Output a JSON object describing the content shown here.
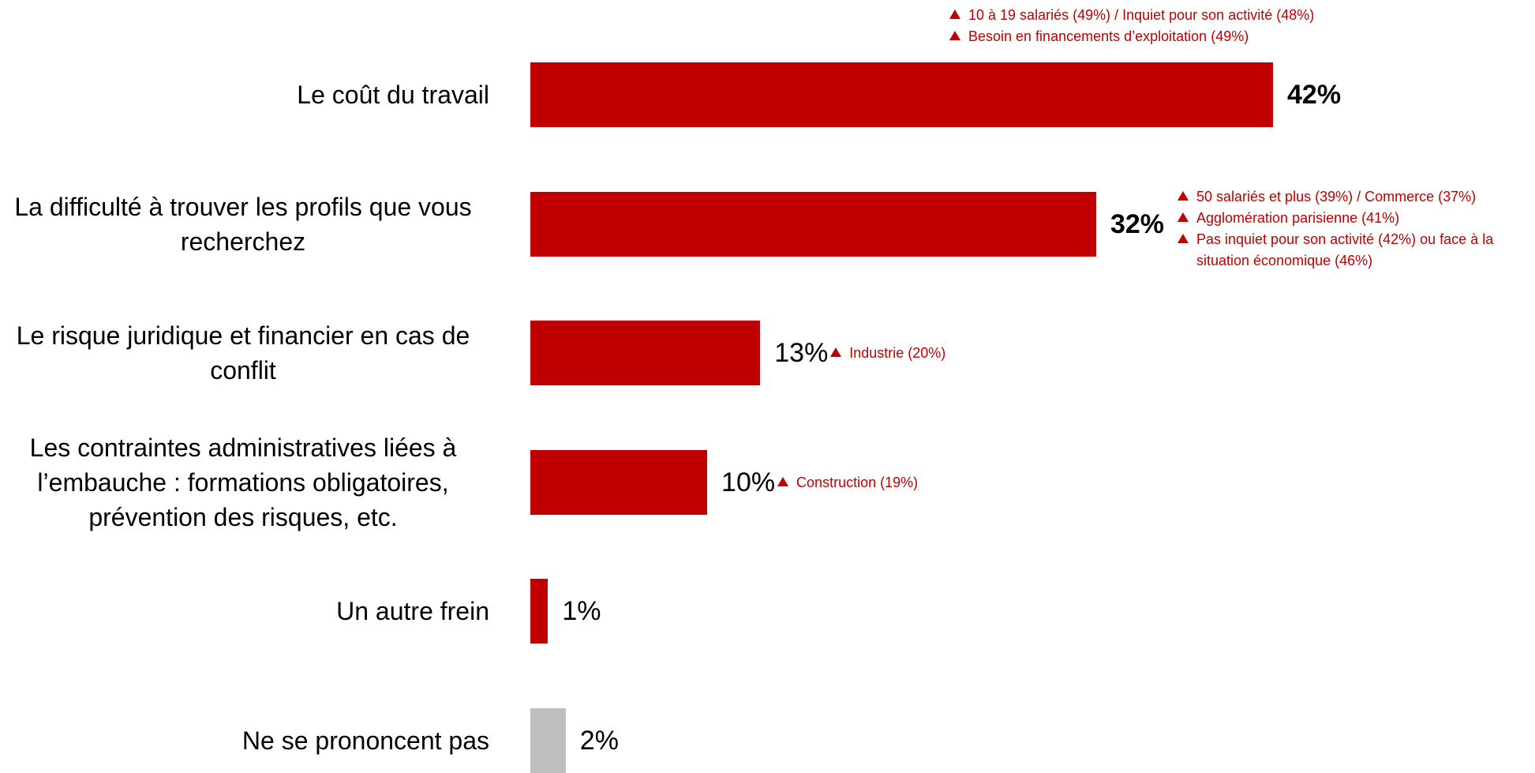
{
  "chart_data": {
    "type": "bar",
    "orientation": "horizontal",
    "categories": [
      "Le coût du travail",
      "La difficulté à trouver les profils que vous recherchez",
      "Le risque juridique et financier en cas de conflit",
      "Les contraintes administratives liées à l’embauche : formations obligatoires, prévention des risques, etc.",
      "Un autre frein",
      "Ne se prononcent pas"
    ],
    "values": [
      42,
      32,
      13,
      10,
      1,
      2
    ],
    "value_labels": [
      "42%",
      "32%",
      "13%",
      "10%",
      "1%",
      "2%"
    ],
    "value_label_bold": [
      true,
      true,
      false,
      false,
      false,
      false
    ],
    "bar_colors": [
      "#c00000",
      "#c00000",
      "#c00000",
      "#c00000",
      "#c00000",
      "#bfbfbf"
    ],
    "annotations": [
      [
        "10 à 19 salariés (49%) / Inquiet pour son activité (48%)",
        "Besoin en financements d’exploitation (49%)"
      ],
      [
        "50 salariés et plus (39%) / Commerce (37%)",
        "Agglomération parisienne (41%)",
        "Pas inquiet pour son activité (42%) ou face à la situation économique (46%)"
      ],
      [
        "Industrie (20%)"
      ],
      [
        "Construction (19%)"
      ],
      [],
      []
    ],
    "annotation_icon": "triangle-up-icon",
    "annotation_color": "#c00000",
    "xlim": [
      0,
      42
    ],
    "grid": false,
    "title": "",
    "xlabel": "",
    "ylabel": ""
  }
}
